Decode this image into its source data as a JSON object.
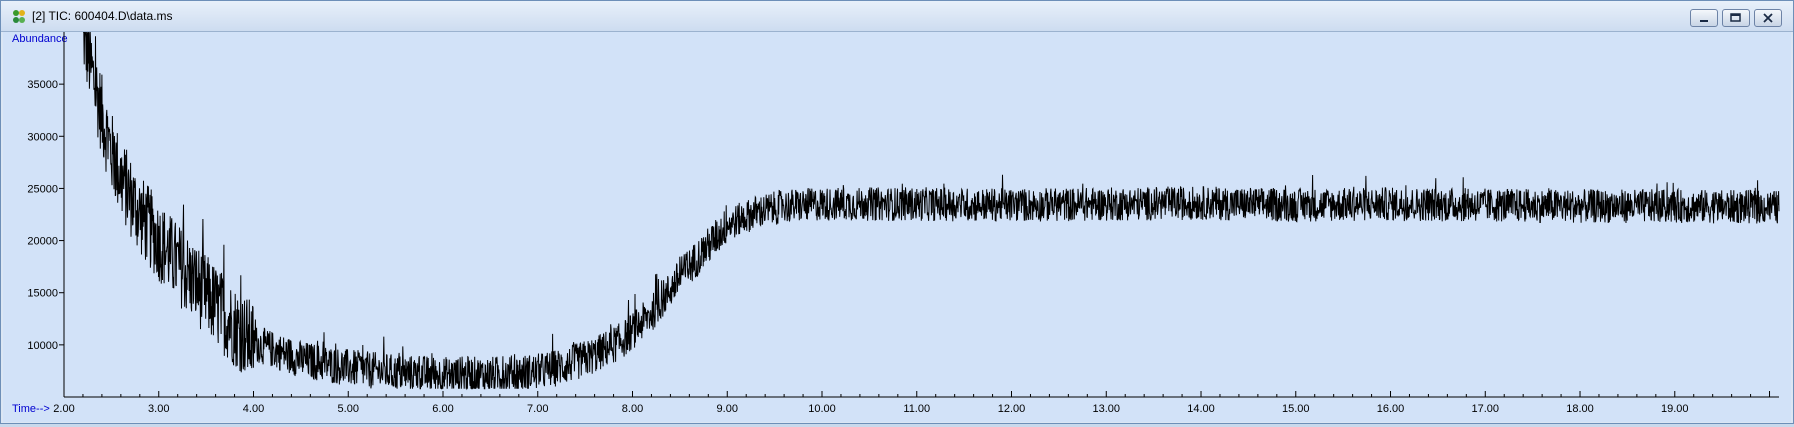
{
  "window": {
    "title": "[2] TIC: 600404.D\\data.ms",
    "controls": {
      "minimize": "minimize",
      "maximize": "maximize",
      "close": "close"
    }
  },
  "chart_data": {
    "type": "line",
    "ylabel": "Abundance",
    "xlabel": "Time-->",
    "xlim": [
      2.0,
      20.1
    ],
    "ylim": [
      5000,
      40000
    ],
    "x_ticks": [
      "2.00",
      "3.00",
      "4.00",
      "5.00",
      "6.00",
      "7.00",
      "8.00",
      "9.00",
      "10.00",
      "11.00",
      "12.00",
      "13.00",
      "14.00",
      "15.00",
      "16.00",
      "17.00",
      "18.00",
      "19.00"
    ],
    "y_ticks": [
      "10000",
      "15000",
      "20000",
      "25000",
      "30000",
      "35000"
    ],
    "series": [
      {
        "x": [
          2.2,
          2.3,
          2.4,
          2.5,
          2.6,
          2.8,
          3.0,
          3.2,
          3.4,
          3.6,
          3.8,
          4.0,
          4.5,
          5.0,
          5.5,
          6.0,
          6.5,
          7.0,
          7.3,
          7.6,
          7.9,
          8.2,
          8.5,
          8.8,
          9.0,
          9.3,
          9.6,
          10.0,
          11.0,
          12.0,
          13.0,
          14.0,
          15.0,
          16.0,
          17.0,
          18.0,
          19.0,
          20.1
        ],
        "y": [
          40000,
          36000,
          32000,
          28500,
          26000,
          22500,
          20000,
          17800,
          15800,
          13800,
          11800,
          10200,
          8600,
          7800,
          7300,
          7100,
          7100,
          7400,
          8000,
          9000,
          10500,
          13000,
          16500,
          19500,
          21500,
          22700,
          23300,
          23500,
          23500,
          23400,
          23500,
          23600,
          23400,
          23500,
          23400,
          23300,
          23300,
          23200
        ]
      }
    ],
    "noise": 1800,
    "color": "#000000"
  }
}
